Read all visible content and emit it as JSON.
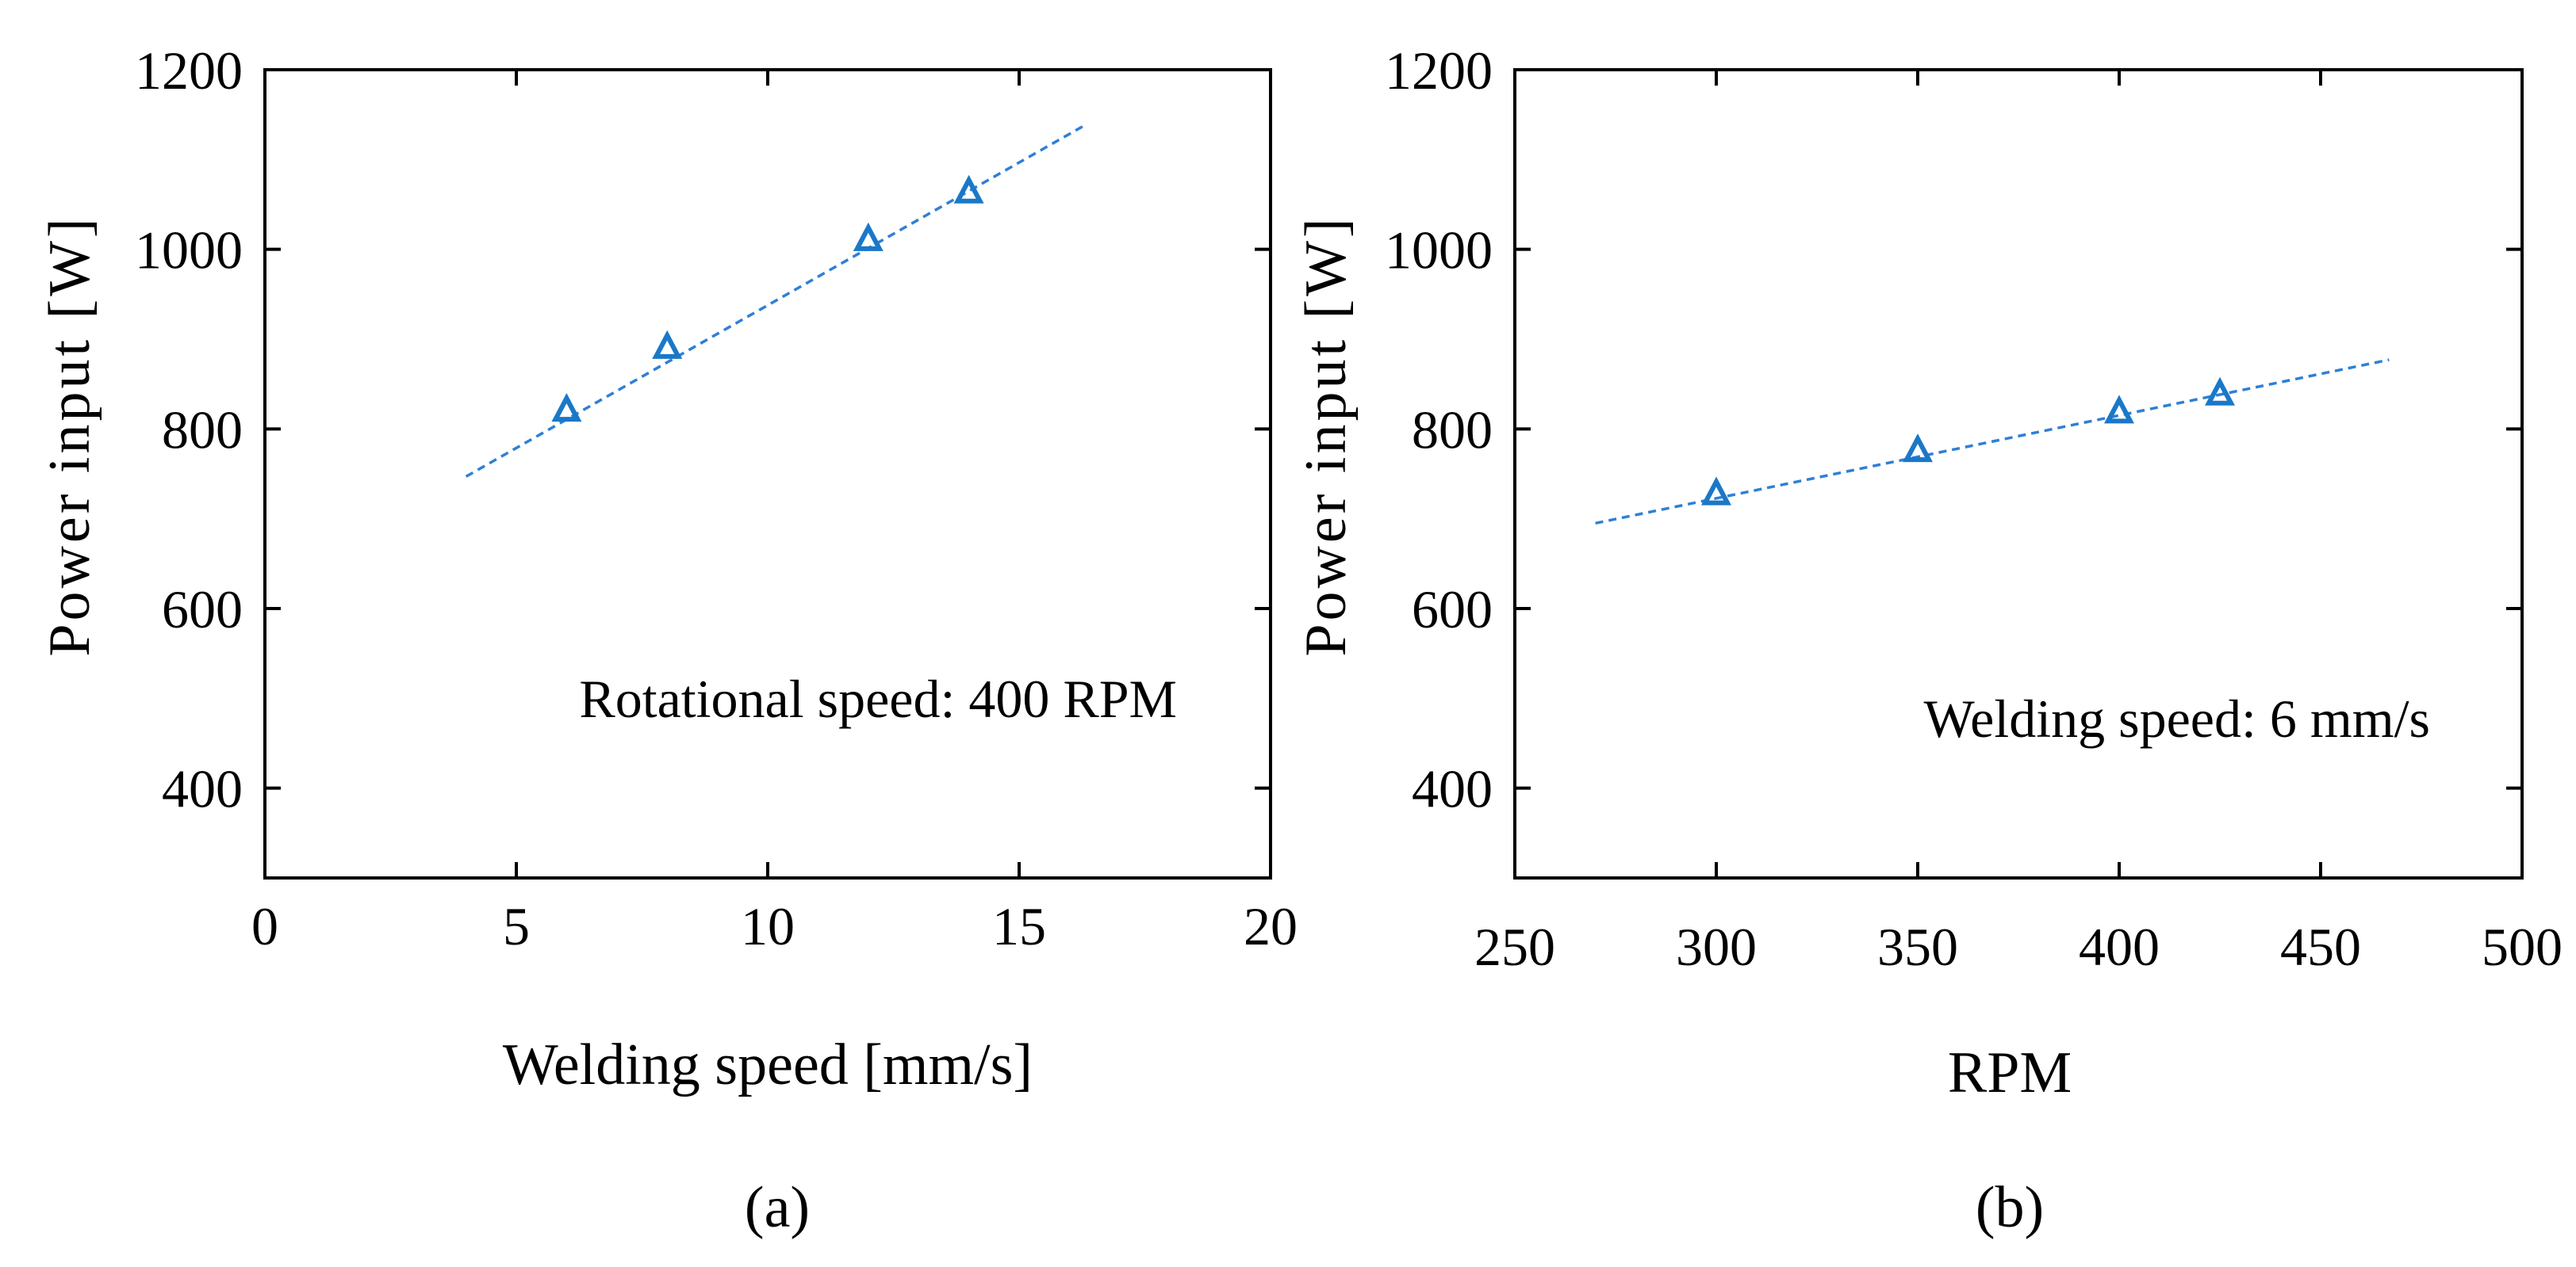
{
  "chart_data": [
    {
      "type": "scatter",
      "panel_label": "(a)",
      "xlabel": "Welding speed [mm/s]",
      "ylabel": "Power input [W]",
      "annotation": "Rotational speed: 400 RPM",
      "xlim": [
        0,
        20
      ],
      "ylim": [
        300,
        1200
      ],
      "x_ticks": [
        0,
        5,
        10,
        15,
        20
      ],
      "x_tick_labels": [
        "0",
        "5",
        "10",
        "15",
        "20"
      ],
      "y_ticks": [
        400,
        600,
        800,
        1000,
        1200
      ],
      "y_tick_labels": [
        "400",
        "600",
        "800",
        "1000",
        "1200"
      ],
      "grid": false,
      "marker": "triangle-open",
      "series": [
        {
          "x": [
            6,
            8,
            12,
            14
          ],
          "y": [
            820,
            890,
            1010,
            1063
          ]
        }
      ],
      "trendline": {
        "style": "dashed",
        "x": [
          4,
          16.3
        ],
        "y": [
          747,
          1138
        ]
      }
    },
    {
      "type": "scatter",
      "panel_label": "(b)",
      "xlabel": "RPM",
      "ylabel": "Power input [W]",
      "annotation": "Welding speed: 6 mm/s",
      "xlim": [
        250,
        500
      ],
      "ylim": [
        300,
        1200
      ],
      "x_ticks": [
        250,
        300,
        350,
        400,
        450,
        500
      ],
      "x_tick_labels": [
        "250",
        "300",
        "350",
        "400",
        "450",
        "500"
      ],
      "y_ticks": [
        400,
        600,
        800,
        1000,
        1200
      ],
      "y_tick_labels": [
        "400",
        "600",
        "800",
        "1000",
        "1200"
      ],
      "grid": false,
      "marker": "triangle-open",
      "series": [
        {
          "x": [
            300,
            350,
            400,
            425
          ],
          "y": [
            727,
            775,
            818,
            838
          ]
        }
      ],
      "trendline": {
        "style": "dashed",
        "x": [
          270,
          467
        ],
        "y": [
          695,
          877
        ]
      }
    }
  ],
  "colors": {
    "marker": "#1a78c8",
    "fit_line": "#2f7fd6",
    "axes": "#000000",
    "text": "#000000"
  }
}
